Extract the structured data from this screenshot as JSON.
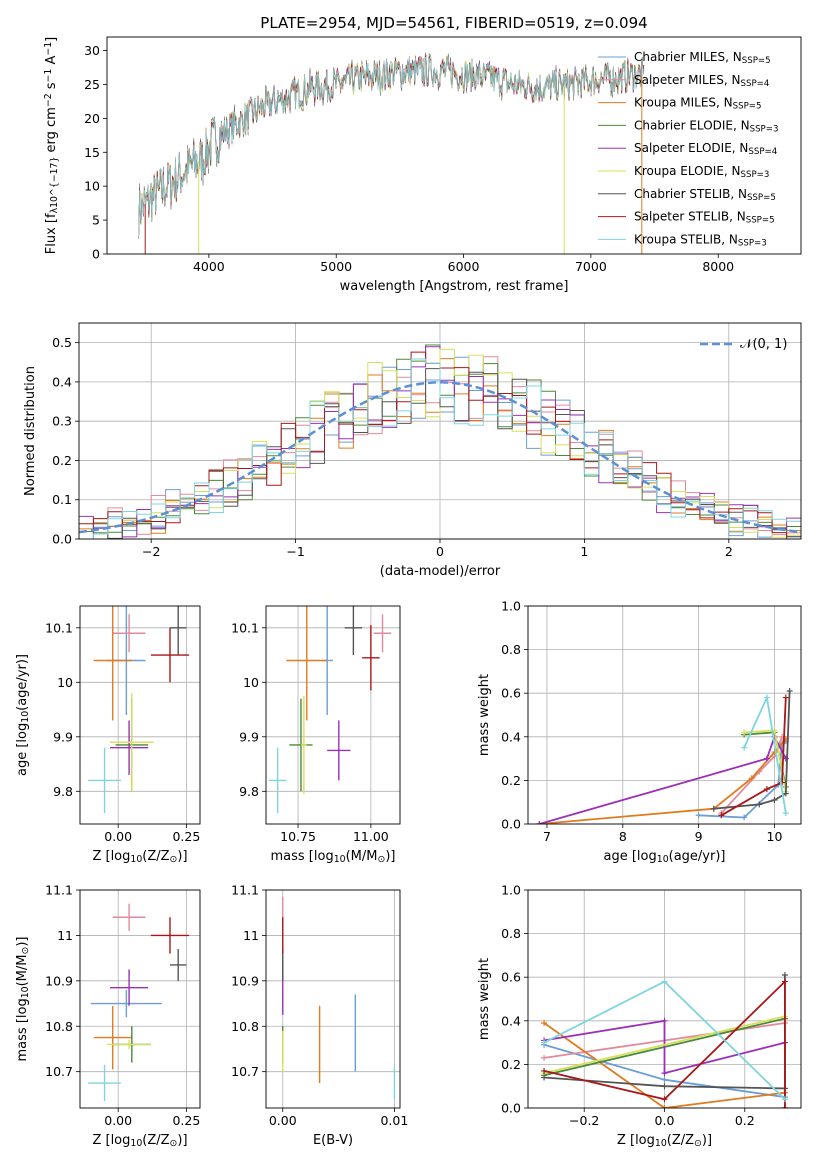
{
  "colors": {
    "chabrier_miles": "#6b9ed6",
    "salpeter_miles": "#e28a9c",
    "kroupa_miles": "#e07b1f",
    "chabrier_elodie": "#4a8a3a",
    "salpeter_elodie": "#9b30b8",
    "kroupa_elodie": "#d7e05a",
    "chabrier_stelib": "#555555",
    "salpeter_stelib": "#a81818",
    "kroupa_stelib": "#7fd5dc",
    "normal_curve": "#5b8fd6",
    "grid": "#b0b0b0"
  },
  "chart_data": [
    {
      "id": "spectrum",
      "type": "line",
      "title": "PLATE=2954, MJD=54561, FIBERID=0519, z=0.094",
      "xlabel": "wavelength [Angstrom, rest frame]",
      "ylabel": "Flux [f_λ10^-17 erg cm^-2 s^-1 A^-1]",
      "xlim": [
        3200,
        8650
      ],
      "ylim": [
        0,
        32
      ],
      "xticks": [
        4000,
        5000,
        6000,
        7000,
        8000
      ],
      "yticks": [
        0,
        5,
        10,
        15,
        20,
        25,
        30
      ],
      "legend_position": "top-right",
      "legend": [
        {
          "label": "Chabrier MILES, N_SSP=5",
          "color_key": "chabrier_miles"
        },
        {
          "label": "Salpeter MILES, N_SSP=4",
          "color_key": "salpeter_miles"
        },
        {
          "label": "Kroupa MILES, N_SSP=5",
          "color_key": "kroupa_miles"
        },
        {
          "label": "Chabrier ELODIE, N_SSP=3",
          "color_key": "chabrier_elodie"
        },
        {
          "label": "Salpeter ELODIE, N_SSP=4",
          "color_key": "salpeter_elodie"
        },
        {
          "label": "Kroupa ELODIE, N_SSP=3",
          "color_key": "kroupa_elodie"
        },
        {
          "label": "Chabrier STELIB, N_SSP=5",
          "color_key": "chabrier_stelib"
        },
        {
          "label": "Salpeter STELIB, N_SSP=5",
          "color_key": "salpeter_stelib"
        },
        {
          "label": "Kroupa STELIB, N_SSP=3",
          "color_key": "kroupa_stelib"
        }
      ],
      "continuum": {
        "x": [
          3450,
          3600,
          3800,
          3950,
          4050,
          4200,
          4400,
          4600,
          4800,
          5000,
          5200,
          5400,
          5600,
          5800,
          6000,
          6200,
          6400,
          6600,
          6800,
          7000,
          7200,
          7400
        ],
        "y": [
          6.5,
          9,
          12,
          14,
          17,
          19,
          21.5,
          23,
          24.5,
          25,
          26,
          26.5,
          27,
          27,
          26.5,
          26,
          25,
          24.5,
          25,
          25.5,
          26,
          26.5
        ]
      },
      "glitches": [
        {
          "x": 3500,
          "y_low": 0,
          "color_key": "salpeter_stelib"
        },
        {
          "x": 3920,
          "y_low": 0,
          "color_key": "kroupa_elodie"
        },
        {
          "x": 6790,
          "y_low": 0,
          "color_key": "kroupa_elodie"
        },
        {
          "x": 7400,
          "y_low": 0,
          "color_key": "kroupa_miles"
        }
      ]
    },
    {
      "id": "residuals",
      "type": "step-histogram",
      "xlabel": "(data-model)/error",
      "ylabel": "Normed distribution",
      "xlim": [
        -2.5,
        2.5
      ],
      "ylim": [
        0,
        0.55
      ],
      "xticks": [
        -2,
        -1,
        0,
        1,
        2
      ],
      "yticks": [
        0.0,
        0.1,
        0.2,
        0.3,
        0.4,
        0.5
      ],
      "legend_position": "top-right",
      "legend_label": "𝒩(0, 1)",
      "normal": {
        "mean": 0,
        "sigma": 1
      },
      "bin_width": 0.1,
      "envelope_x": [
        -2.45,
        -2.0,
        -1.5,
        -1.0,
        -0.5,
        -0.25,
        0.0,
        0.25,
        0.5,
        1.0,
        1.5,
        2.0,
        2.45
      ],
      "envelope_y": [
        0.02,
        0.055,
        0.13,
        0.24,
        0.35,
        0.385,
        0.4,
        0.385,
        0.35,
        0.24,
        0.13,
        0.055,
        0.02
      ]
    },
    {
      "id": "age-vs-Z",
      "type": "errorbar",
      "xlabel": "Z [log10(Z/Z⊙)]",
      "ylabel": "age  [log10(age/yr)]",
      "xlim": [
        -0.14,
        0.3
      ],
      "ylim": [
        9.74,
        10.14
      ],
      "xticks": [
        0.0,
        0.25
      ],
      "xticklabels": [
        "0.00",
        "0.25"
      ],
      "yticks": [
        9.8,
        9.9,
        10.0,
        10.1
      ],
      "points": [
        {
          "color_key": "chabrier_miles",
          "x": 0.03,
          "xerr": 0.07,
          "y": 10.04,
          "yerr": 0.1
        },
        {
          "color_key": "salpeter_miles",
          "x": 0.04,
          "xerr": 0.06,
          "y": 10.09,
          "yerr": 0.035
        },
        {
          "color_key": "kroupa_miles",
          "x": -0.02,
          "xerr": 0.07,
          "y": 10.04,
          "yerr": 0.11
        },
        {
          "color_key": "chabrier_elodie",
          "x": 0.05,
          "xerr": 0.06,
          "y": 9.885,
          "yerr": 0.085
        },
        {
          "color_key": "salpeter_elodie",
          "x": 0.04,
          "xerr": 0.07,
          "y": 9.88,
          "yerr": 0.05
        },
        {
          "color_key": "kroupa_elodie",
          "x": 0.05,
          "xerr": 0.08,
          "y": 9.89,
          "yerr": 0.09
        },
        {
          "color_key": "chabrier_stelib",
          "x": 0.22,
          "xerr": 0.03,
          "y": 10.1,
          "yerr": 0.05
        },
        {
          "color_key": "salpeter_stelib",
          "x": 0.19,
          "xerr": 0.07,
          "y": 10.05,
          "yerr": 0.05
        },
        {
          "color_key": "kroupa_stelib",
          "x": -0.05,
          "xerr": 0.06,
          "y": 9.82,
          "yerr": 0.06
        }
      ]
    },
    {
      "id": "age-vs-mass",
      "type": "errorbar",
      "xlabel": "mass [log10(M/M⊙)]",
      "ylabel": "",
      "xlim": [
        10.64,
        11.1
      ],
      "ylim": [
        9.74,
        10.14
      ],
      "xticks": [
        10.75,
        11.0
      ],
      "xticklabels": [
        "10.75",
        "11.00"
      ],
      "yticks": [
        9.8,
        9.9,
        10.0,
        10.1
      ],
      "points": [
        {
          "color_key": "chabrier_miles",
          "x": 10.85,
          "xerr": 0.02,
          "y": 10.04,
          "yerr": 0.1
        },
        {
          "color_key": "salpeter_miles",
          "x": 11.04,
          "xerr": 0.03,
          "y": 10.09,
          "yerr": 0.035
        },
        {
          "color_key": "kroupa_miles",
          "x": 10.78,
          "xerr": 0.07,
          "y": 10.04,
          "yerr": 0.11
        },
        {
          "color_key": "chabrier_elodie",
          "x": 10.76,
          "xerr": 0.04,
          "y": 9.885,
          "yerr": 0.085
        },
        {
          "color_key": "salpeter_elodie",
          "x": 10.89,
          "xerr": 0.04,
          "y": 9.875,
          "yerr": 0.055
        },
        {
          "color_key": "kroupa_elodie",
          "x": 10.77,
          "xerr": 0.01,
          "y": 9.885,
          "yerr": 0.09
        },
        {
          "color_key": "chabrier_stelib",
          "x": 10.94,
          "xerr": 0.03,
          "y": 10.1,
          "yerr": 0.05
        },
        {
          "color_key": "salpeter_stelib",
          "x": 11.0,
          "xerr": 0.03,
          "y": 10.045,
          "yerr": 0.06
        },
        {
          "color_key": "kroupa_stelib",
          "x": 10.68,
          "xerr": 0.03,
          "y": 9.82,
          "yerr": 0.06
        }
      ]
    },
    {
      "id": "weight-vs-age",
      "type": "line",
      "xlabel": "age  [log10(age/yr)]",
      "ylabel": "mass weight",
      "xlim": [
        6.75,
        10.35
      ],
      "ylim": [
        0,
        1
      ],
      "xticks": [
        7,
        8,
        9,
        10
      ],
      "yticks": [
        0.0,
        0.2,
        0.4,
        0.6,
        0.8,
        1.0
      ],
      "series": [
        {
          "color_key": "chabrier_miles",
          "x": [
            9.0,
            9.6,
            10.05,
            10.1,
            10.15
          ],
          "y": [
            0.04,
            0.03,
            0.18,
            0.37,
            0.38
          ]
        },
        {
          "color_key": "salpeter_miles",
          "x": [
            9.3,
            9.8,
            10.0,
            10.1
          ],
          "y": [
            0.05,
            0.24,
            0.31,
            0.4
          ]
        },
        {
          "color_key": "kroupa_miles",
          "x": [
            6.9,
            9.2,
            9.7,
            10.0,
            10.15
          ],
          "y": [
            0.0,
            0.07,
            0.21,
            0.33,
            0.39
          ]
        },
        {
          "color_key": "chabrier_elodie",
          "x": [
            9.6,
            10.0,
            10.15
          ],
          "y": [
            0.41,
            0.42,
            0.17
          ]
        },
        {
          "color_key": "salpeter_elodie",
          "x": [
            6.9,
            9.9,
            10.0,
            10.15
          ],
          "y": [
            0.0,
            0.3,
            0.4,
            0.3
          ]
        },
        {
          "color_key": "kroupa_elodie",
          "x": [
            9.6,
            10.0,
            10.15
          ],
          "y": [
            0.42,
            0.43,
            0.15
          ]
        },
        {
          "color_key": "chabrier_stelib",
          "x": [
            9.2,
            9.8,
            10.0,
            10.15,
            10.2
          ],
          "y": [
            0.07,
            0.09,
            0.11,
            0.14,
            0.61
          ]
        },
        {
          "color_key": "salpeter_stelib",
          "x": [
            9.3,
            9.9,
            10.1,
            10.15
          ],
          "y": [
            0.04,
            0.16,
            0.19,
            0.58
          ]
        },
        {
          "color_key": "kroupa_stelib",
          "x": [
            9.6,
            9.9,
            10.15
          ],
          "y": [
            0.35,
            0.58,
            0.05
          ]
        }
      ]
    },
    {
      "id": "mass-vs-Z",
      "type": "errorbar",
      "xlabel": "Z [log10(Z/Z⊙)]",
      "ylabel": "mass [log10(M/M⊙)]",
      "xlim": [
        -0.14,
        0.3
      ],
      "ylim": [
        10.62,
        11.1
      ],
      "xticks": [
        0.0,
        0.25
      ],
      "xticklabels": [
        "0.00",
        "0.25"
      ],
      "yticks": [
        10.7,
        10.8,
        10.9,
        11.0,
        11.1
      ],
      "points": [
        {
          "color_key": "chabrier_miles",
          "x": 0.03,
          "xerr": 0.13,
          "y": 10.85,
          "yerr": 0.03
        },
        {
          "color_key": "salpeter_miles",
          "x": 0.04,
          "xerr": 0.06,
          "y": 11.04,
          "yerr": 0.03
        },
        {
          "color_key": "kroupa_miles",
          "x": -0.02,
          "xerr": 0.07,
          "y": 10.775,
          "yerr": 0.07
        },
        {
          "color_key": "chabrier_elodie",
          "x": 0.05,
          "xerr": 0.07,
          "y": 10.76,
          "yerr": 0.04
        },
        {
          "color_key": "salpeter_elodie",
          "x": 0.04,
          "xerr": 0.07,
          "y": 10.885,
          "yerr": 0.04
        },
        {
          "color_key": "kroupa_elodie",
          "x": 0.04,
          "xerr": 0.08,
          "y": 10.76,
          "yerr": 0.01
        },
        {
          "color_key": "chabrier_stelib",
          "x": 0.22,
          "xerr": 0.03,
          "y": 10.935,
          "yerr": 0.035
        },
        {
          "color_key": "salpeter_stelib",
          "x": 0.19,
          "xerr": 0.07,
          "y": 11.0,
          "yerr": 0.04
        },
        {
          "color_key": "kroupa_stelib",
          "x": -0.05,
          "xerr": 0.06,
          "y": 10.675,
          "yerr": 0.04
        }
      ]
    },
    {
      "id": "mass-vs-ebv",
      "type": "errorbar",
      "xlabel": "E(B-V)",
      "ylabel": "",
      "xlim": [
        -0.0015,
        0.0105
      ],
      "ylim": [
        10.62,
        11.1
      ],
      "xticks": [
        0.0,
        0.01
      ],
      "xticklabels": [
        "0.00",
        "0.01"
      ],
      "yticks": [
        10.7,
        10.8,
        10.9,
        11.0,
        11.1
      ],
      "points": [
        {
          "color_key": "chabrier_miles",
          "x": 0.0065,
          "y": 10.785,
          "yerr": 0.085
        },
        {
          "color_key": "salpeter_miles",
          "x": 0.0,
          "y": 11.045,
          "yerr": 0.04
        },
        {
          "color_key": "kroupa_miles",
          "x": 0.0033,
          "y": 10.76,
          "yerr": 0.085
        },
        {
          "color_key": "chabrier_elodie",
          "x": 0.0,
          "y": 10.76,
          "yerr": 0.04
        },
        {
          "color_key": "salpeter_elodie",
          "x": 0.0,
          "y": 10.885,
          "yerr": 0.06
        },
        {
          "color_key": "kroupa_elodie",
          "x": 0.0,
          "y": 10.745,
          "yerr": 0.045
        },
        {
          "color_key": "chabrier_stelib",
          "x": 0.0,
          "y": 10.935,
          "yerr": 0.035
        },
        {
          "color_key": "salpeter_stelib",
          "x": 0.0,
          "y": 11.0,
          "yerr": 0.04
        },
        {
          "color_key": "kroupa_stelib",
          "x": 0.01,
          "y": 10.675,
          "yerr": 0.035
        }
      ]
    },
    {
      "id": "weight-vs-Z",
      "type": "line",
      "xlabel": "Z [log10(Z/Z⊙)]",
      "ylabel": "mass weight",
      "xlim": [
        -0.34,
        0.34
      ],
      "ylim": [
        0,
        1
      ],
      "xticks": [
        -0.2,
        0.0,
        0.2
      ],
      "xticklabels": [
        "−0.2",
        "0.0",
        "0.2"
      ],
      "yticks": [
        0.0,
        0.2,
        0.4,
        0.6,
        0.8,
        1.0
      ],
      "series": [
        {
          "color_key": "chabrier_miles",
          "x": [
            -0.3,
            0.0,
            0.3
          ],
          "y": [
            0.29,
            0.13,
            0.05
          ]
        },
        {
          "color_key": "salpeter_miles",
          "x": [
            -0.3,
            0.3
          ],
          "y": [
            0.23,
            0.39
          ]
        },
        {
          "color_key": "kroupa_miles",
          "x": [
            -0.3,
            0.0,
            0.3
          ],
          "y": [
            0.39,
            0.0,
            0.07
          ]
        },
        {
          "color_key": "chabrier_elodie",
          "x": [
            -0.3,
            0.3
          ],
          "y": [
            0.15,
            0.41
          ]
        },
        {
          "color_key": "salpeter_elodie",
          "x": [
            -0.3,
            0.0,
            0.0,
            0.3,
            0.3
          ],
          "y": [
            0.31,
            0.4,
            0.16,
            0.3,
            0.0
          ]
        },
        {
          "color_key": "kroupa_elodie",
          "x": [
            -0.3,
            0.3
          ],
          "y": [
            0.16,
            0.42
          ]
        },
        {
          "color_key": "chabrier_stelib",
          "x": [
            -0.3,
            0.0,
            0.3,
            0.3
          ],
          "y": [
            0.14,
            0.1,
            0.09,
            0.61
          ]
        },
        {
          "color_key": "salpeter_stelib",
          "x": [
            -0.3,
            0.0,
            0.3,
            0.3
          ],
          "y": [
            0.17,
            0.04,
            0.58,
            0.0
          ]
        },
        {
          "color_key": "kroupa_stelib",
          "x": [
            -0.3,
            0.0,
            0.3
          ],
          "y": [
            0.3,
            0.58,
            0.04
          ]
        }
      ]
    }
  ]
}
